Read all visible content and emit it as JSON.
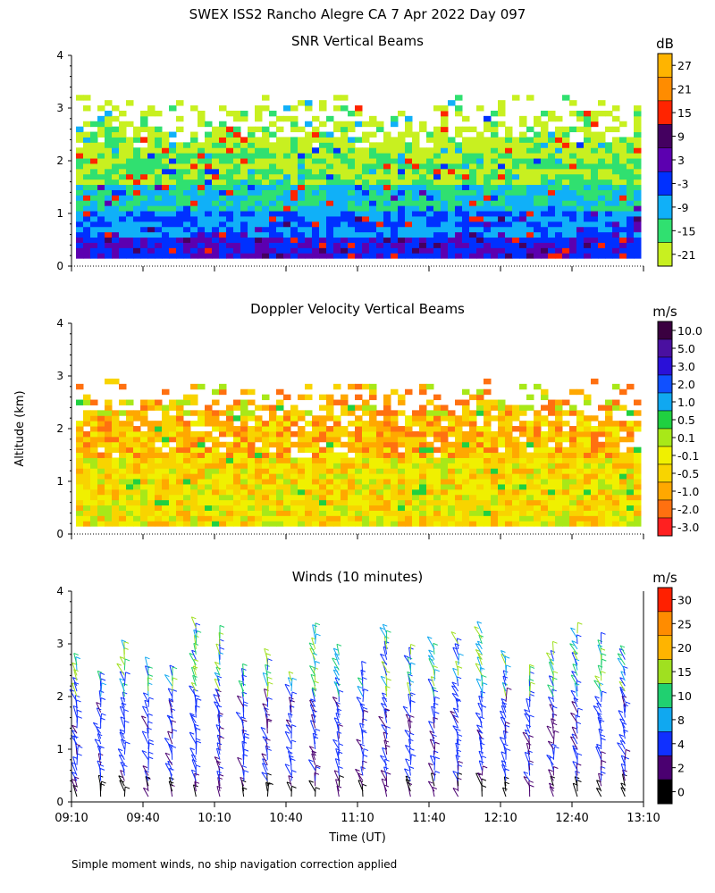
{
  "figure": {
    "title": "SWEX ISS2 Rancho Alegre CA   7 Apr 2022 Day 097",
    "ylabel": "Altitude (km)",
    "xlabel": "Time (UT)",
    "footnote": "Simple moment winds, no ship navigation correction applied"
  },
  "chart_data": [
    {
      "type": "heatmap",
      "title": "SNR Vertical Beams",
      "xlabel": "Time (UT)",
      "ylabel": "Altitude (km)",
      "x_ticks": [
        "09:10",
        "09:40",
        "10:10",
        "10:40",
        "11:10",
        "11:40",
        "12:10",
        "12:40",
        "13:10"
      ],
      "y_ticks": [
        0,
        1,
        2,
        3,
        4
      ],
      "xlim": [
        "09:10",
        "13:10"
      ],
      "ylim": [
        0,
        4
      ],
      "colorbar": {
        "units": "dB",
        "labels": [
          "27",
          "21",
          "15",
          "9",
          "3",
          "-3",
          "-9",
          "-15",
          "-21"
        ],
        "colors": [
          "#ffb400",
          "#ff8c00",
          "#ff2400",
          "#440060",
          "#5c00b0",
          "#0030ff",
          "#10b0f8",
          "#30e070",
          "#c8f020"
        ]
      }
    },
    {
      "type": "heatmap",
      "title": "Doppler Velocity Vertical Beams",
      "xlabel": "Time (UT)",
      "ylabel": "Altitude (km)",
      "x_ticks": [
        "09:10",
        "09:40",
        "10:10",
        "10:40",
        "11:10",
        "11:40",
        "12:10",
        "12:40",
        "13:10"
      ],
      "y_ticks": [
        0,
        1,
        2,
        3,
        4
      ],
      "xlim": [
        "09:10",
        "13:10"
      ],
      "ylim": [
        0,
        4
      ],
      "colorbar": {
        "units": "m/s",
        "labels": [
          "10.0",
          "5.0",
          "3.0",
          "2.0",
          "1.0",
          "0.5",
          "0.1",
          "-0.1",
          "-0.5",
          "-1.0",
          "-2.0",
          "-3.0"
        ],
        "colors": [
          "#3a0040",
          "#4a10a0",
          "#2a10d8",
          "#1050ff",
          "#10a8f0",
          "#20d040",
          "#a8e818",
          "#f0f000",
          "#f8d400",
          "#ffa800",
          "#ff7010",
          "#ff2020"
        ]
      }
    },
    {
      "type": "scatter",
      "title": "Winds (10 minutes)",
      "xlabel": "Time (UT)",
      "ylabel": "Altitude (km)",
      "x_ticks": [
        "09:10",
        "09:40",
        "10:10",
        "10:40",
        "11:10",
        "11:40",
        "12:10",
        "12:40",
        "13:10"
      ],
      "y_ticks": [
        0,
        1,
        2,
        3,
        4
      ],
      "xlim": [
        "09:10",
        "13:10"
      ],
      "ylim": [
        0,
        4
      ],
      "colorbar": {
        "units": "m/s",
        "labels": [
          "30",
          "25",
          "20",
          "15",
          "10",
          "8",
          "4",
          "2",
          "0"
        ],
        "colors": [
          "#ff2000",
          "#ff8c00",
          "#ffb400",
          "#a0e020",
          "#20d070",
          "#10a8f0",
          "#1030ff",
          "#4a0070",
          "#000000"
        ]
      }
    }
  ]
}
